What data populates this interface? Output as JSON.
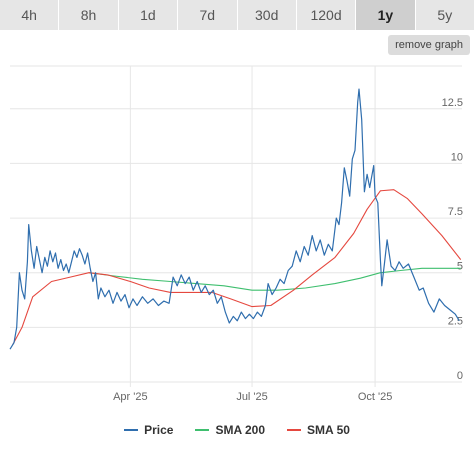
{
  "tabs": [
    {
      "label": "4h",
      "active": false
    },
    {
      "label": "8h",
      "active": false
    },
    {
      "label": "1d",
      "active": false
    },
    {
      "label": "7d",
      "active": false
    },
    {
      "label": "30d",
      "active": false
    },
    {
      "label": "120d",
      "active": false
    },
    {
      "label": "1y",
      "active": true
    },
    {
      "label": "5y",
      "active": false
    }
  ],
  "remove_button": "remove graph",
  "colors": {
    "price": "#2f6eae",
    "sma200": "#3fbf6f",
    "sma50": "#e5483f"
  },
  "chart_data": {
    "type": "line",
    "title": "",
    "xlabel": "",
    "ylabel": "",
    "ylim": [
      0,
      14
    ],
    "y_ticks": [
      0,
      2.5,
      5,
      7.5,
      10,
      12.5
    ],
    "y_tick_labels": [
      "0",
      "2.5",
      "5",
      "7.5",
      "10",
      "12.5"
    ],
    "x_ticks": [
      "2025-04-01",
      "2025-07-01",
      "2025-10-01"
    ],
    "x_tick_labels": [
      "Apr '25",
      "Jul '25",
      "Oct '25"
    ],
    "x_range": [
      "2025-01-01",
      "2025-12-05"
    ],
    "grid": true,
    "legend_position": "bottom",
    "series": [
      {
        "name": "Price",
        "color_key": "price",
        "points": [
          [
            "2025-01-01",
            1.5
          ],
          [
            "2025-01-04",
            1.8
          ],
          [
            "2025-01-06",
            2.5
          ],
          [
            "2025-01-08",
            5.0
          ],
          [
            "2025-01-10",
            4.2
          ],
          [
            "2025-01-12",
            3.8
          ],
          [
            "2025-01-14",
            5.5
          ],
          [
            "2025-01-15",
            7.2
          ],
          [
            "2025-01-17",
            6.0
          ],
          [
            "2025-01-19",
            5.2
          ],
          [
            "2025-01-21",
            6.2
          ],
          [
            "2025-01-23",
            5.6
          ],
          [
            "2025-01-25",
            5.0
          ],
          [
            "2025-01-27",
            5.7
          ],
          [
            "2025-01-29",
            5.3
          ],
          [
            "2025-01-31",
            6.0
          ],
          [
            "2025-02-02",
            5.5
          ],
          [
            "2025-02-04",
            5.9
          ],
          [
            "2025-02-06",
            5.2
          ],
          [
            "2025-02-08",
            5.6
          ],
          [
            "2025-02-10",
            5.1
          ],
          [
            "2025-02-12",
            5.4
          ],
          [
            "2025-02-14",
            5.0
          ],
          [
            "2025-02-16",
            5.5
          ],
          [
            "2025-02-18",
            6.0
          ],
          [
            "2025-02-20",
            5.7
          ],
          [
            "2025-02-22",
            6.1
          ],
          [
            "2025-02-24",
            5.8
          ],
          [
            "2025-02-26",
            5.4
          ],
          [
            "2025-02-28",
            5.9
          ],
          [
            "2025-03-02",
            5.2
          ],
          [
            "2025-03-04",
            4.6
          ],
          [
            "2025-03-06",
            5.0
          ],
          [
            "2025-03-08",
            3.8
          ],
          [
            "2025-03-10",
            4.3
          ],
          [
            "2025-03-13",
            3.9
          ],
          [
            "2025-03-16",
            4.2
          ],
          [
            "2025-03-19",
            3.6
          ],
          [
            "2025-03-22",
            4.1
          ],
          [
            "2025-03-25",
            3.7
          ],
          [
            "2025-03-28",
            4.0
          ],
          [
            "2025-03-31",
            3.4
          ],
          [
            "2025-04-03",
            3.8
          ],
          [
            "2025-04-06",
            3.5
          ],
          [
            "2025-04-10",
            3.9
          ],
          [
            "2025-04-14",
            3.6
          ],
          [
            "2025-04-18",
            3.8
          ],
          [
            "2025-04-22",
            3.5
          ],
          [
            "2025-04-26",
            3.7
          ],
          [
            "2025-04-30",
            3.6
          ],
          [
            "2025-05-03",
            4.8
          ],
          [
            "2025-05-06",
            4.4
          ],
          [
            "2025-05-09",
            4.9
          ],
          [
            "2025-05-12",
            4.5
          ],
          [
            "2025-05-15",
            4.8
          ],
          [
            "2025-05-18",
            4.2
          ],
          [
            "2025-05-21",
            4.6
          ],
          [
            "2025-05-24",
            4.1
          ],
          [
            "2025-05-27",
            4.4
          ],
          [
            "2025-05-30",
            4.0
          ],
          [
            "2025-06-02",
            4.2
          ],
          [
            "2025-06-05",
            3.6
          ],
          [
            "2025-06-08",
            3.9
          ],
          [
            "2025-06-11",
            3.2
          ],
          [
            "2025-06-14",
            2.7
          ],
          [
            "2025-06-17",
            3.0
          ],
          [
            "2025-06-20",
            2.8
          ],
          [
            "2025-06-23",
            3.2
          ],
          [
            "2025-06-26",
            2.9
          ],
          [
            "2025-06-29",
            3.1
          ],
          [
            "2025-07-02",
            2.9
          ],
          [
            "2025-07-05",
            3.2
          ],
          [
            "2025-07-08",
            3.0
          ],
          [
            "2025-07-11",
            3.5
          ],
          [
            "2025-07-13",
            4.5
          ],
          [
            "2025-07-16",
            4.0
          ],
          [
            "2025-07-19",
            4.3
          ],
          [
            "2025-07-22",
            4.7
          ],
          [
            "2025-07-25",
            4.5
          ],
          [
            "2025-07-28",
            5.1
          ],
          [
            "2025-07-31",
            5.3
          ],
          [
            "2025-08-03",
            6.0
          ],
          [
            "2025-08-06",
            5.5
          ],
          [
            "2025-08-09",
            6.2
          ],
          [
            "2025-08-12",
            5.8
          ],
          [
            "2025-08-15",
            6.7
          ],
          [
            "2025-08-18",
            6.0
          ],
          [
            "2025-08-21",
            6.5
          ],
          [
            "2025-08-24",
            5.8
          ],
          [
            "2025-08-27",
            6.3
          ],
          [
            "2025-08-30",
            6.0
          ],
          [
            "2025-09-02",
            7.5
          ],
          [
            "2025-09-04",
            7.2
          ],
          [
            "2025-09-06",
            8.2
          ],
          [
            "2025-09-08",
            9.8
          ],
          [
            "2025-09-10",
            9.2
          ],
          [
            "2025-09-12",
            8.5
          ],
          [
            "2025-09-14",
            10.2
          ],
          [
            "2025-09-16",
            10.6
          ],
          [
            "2025-09-18",
            12.8
          ],
          [
            "2025-09-19",
            13.4
          ],
          [
            "2025-09-21",
            12.0
          ],
          [
            "2025-09-23",
            8.7
          ],
          [
            "2025-09-25",
            9.5
          ],
          [
            "2025-09-27",
            8.9
          ],
          [
            "2025-09-30",
            9.9
          ],
          [
            "2025-10-01",
            8.5
          ],
          [
            "2025-10-03",
            8.2
          ],
          [
            "2025-10-05",
            5.6
          ],
          [
            "2025-10-06",
            4.4
          ],
          [
            "2025-10-08",
            5.4
          ],
          [
            "2025-10-10",
            6.5
          ],
          [
            "2025-10-13",
            5.3
          ],
          [
            "2025-10-16",
            5.1
          ],
          [
            "2025-10-19",
            5.5
          ],
          [
            "2025-10-22",
            5.2
          ],
          [
            "2025-10-26",
            5.4
          ],
          [
            "2025-10-30",
            4.8
          ],
          [
            "2025-11-03",
            4.2
          ],
          [
            "2025-11-06",
            4.3
          ],
          [
            "2025-11-10",
            3.6
          ],
          [
            "2025-11-14",
            3.2
          ],
          [
            "2025-11-18",
            3.8
          ],
          [
            "2025-11-22",
            3.5
          ],
          [
            "2025-11-26",
            3.3
          ],
          [
            "2025-11-30",
            3.1
          ],
          [
            "2025-12-03",
            2.8
          ]
        ]
      },
      {
        "name": "SMA 200",
        "color_key": "sma200",
        "points": [
          [
            "2025-03-01",
            5.0
          ],
          [
            "2025-03-20",
            4.85
          ],
          [
            "2025-04-10",
            4.7
          ],
          [
            "2025-05-01",
            4.6
          ],
          [
            "2025-05-20",
            4.5
          ],
          [
            "2025-06-10",
            4.4
          ],
          [
            "2025-07-01",
            4.2
          ],
          [
            "2025-07-20",
            4.2
          ],
          [
            "2025-08-10",
            4.3
          ],
          [
            "2025-09-01",
            4.5
          ],
          [
            "2025-09-20",
            4.75
          ],
          [
            "2025-10-05",
            5.0
          ],
          [
            "2025-10-20",
            5.1
          ],
          [
            "2025-11-05",
            5.2
          ],
          [
            "2025-11-20",
            5.2
          ],
          [
            "2025-12-04",
            5.2
          ]
        ]
      },
      {
        "name": "SMA 50",
        "color_key": "sma50",
        "points": [
          [
            "2025-01-03",
            1.7
          ],
          [
            "2025-01-10",
            2.5
          ],
          [
            "2025-01-18",
            3.9
          ],
          [
            "2025-02-01",
            4.6
          ],
          [
            "2025-02-15",
            4.8
          ],
          [
            "2025-03-01",
            5.0
          ],
          [
            "2025-03-15",
            4.9
          ],
          [
            "2025-04-01",
            4.6
          ],
          [
            "2025-04-15",
            4.3
          ],
          [
            "2025-05-01",
            4.1
          ],
          [
            "2025-05-15",
            4.1
          ],
          [
            "2025-06-01",
            4.1
          ],
          [
            "2025-06-15",
            3.8
          ],
          [
            "2025-07-01",
            3.45
          ],
          [
            "2025-07-15",
            3.5
          ],
          [
            "2025-08-01",
            4.2
          ],
          [
            "2025-08-15",
            4.9
          ],
          [
            "2025-09-01",
            5.7
          ],
          [
            "2025-09-15",
            6.8
          ],
          [
            "2025-09-25",
            7.9
          ],
          [
            "2025-10-05",
            8.75
          ],
          [
            "2025-10-15",
            8.8
          ],
          [
            "2025-10-25",
            8.4
          ],
          [
            "2025-11-05",
            7.7
          ],
          [
            "2025-11-20",
            6.7
          ],
          [
            "2025-12-04",
            5.6
          ]
        ]
      }
    ]
  }
}
